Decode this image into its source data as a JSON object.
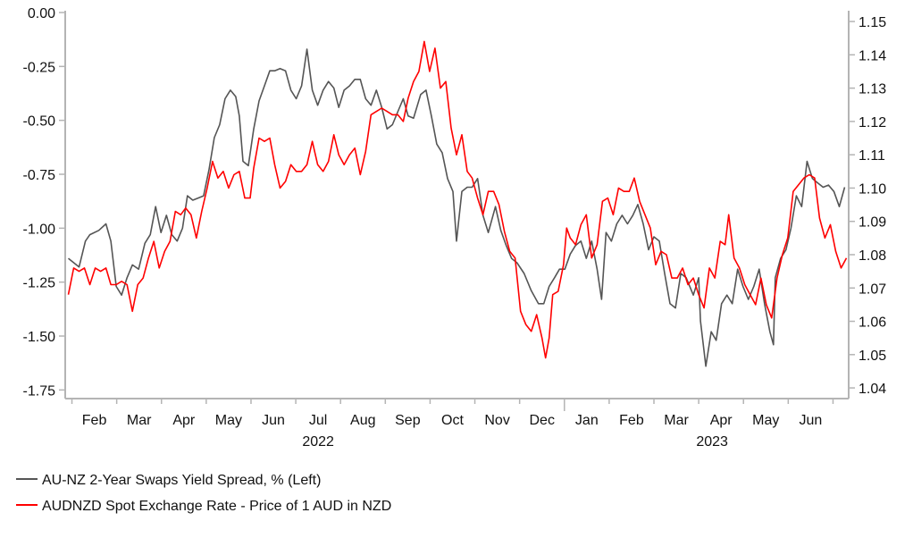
{
  "chart_data": {
    "type": "line",
    "title": "",
    "x_unit": "months since 2022-01-01",
    "xlim": [
      0.85,
      18.35
    ],
    "x_tick_labels": [
      "Feb",
      "Mar",
      "Apr",
      "May",
      "Jun",
      "Jul",
      "Aug",
      "Sep",
      "Oct",
      "Nov",
      "Dec",
      "Jan",
      "Feb",
      "Mar",
      "Apr",
      "May",
      "Jun"
    ],
    "year_labels": [
      {
        "label": "2022",
        "at": 6.5
      },
      {
        "label": "2023",
        "at": 15.3
      }
    ],
    "left_axis": {
      "ylim": [
        -1.79,
        0.0
      ],
      "ticks": [
        "0.00",
        "-0.25",
        "-0.50",
        "-0.75",
        "-1.00",
        "-1.25",
        "-1.50",
        "-1.75"
      ],
      "tick_values": [
        0,
        -0.25,
        -0.5,
        -0.75,
        -1,
        -1.25,
        -1.5,
        -1.75
      ]
    },
    "right_axis": {
      "ylim": [
        1.0368,
        1.1527
      ],
      "ticks": [
        "1.15",
        "1.14",
        "1.13",
        "1.12",
        "1.11",
        "1.10",
        "1.09",
        "1.08",
        "1.07",
        "1.06",
        "1.05",
        "1.04"
      ],
      "tick_values": [
        1.15,
        1.14,
        1.13,
        1.12,
        1.11,
        1.1,
        1.09,
        1.08,
        1.07,
        1.06,
        1.05,
        1.04
      ]
    },
    "grid": false,
    "legend_position": "bottom-left",
    "series": [
      {
        "name": "AU-NZ 2-Year Swaps Yield Spread, % (Left)",
        "axis": "left",
        "color": "#555555",
        "x": [
          0.92,
          1.16,
          1.3,
          1.4,
          1.6,
          1.76,
          1.87,
          1.99,
          2.11,
          2.23,
          2.35,
          2.49,
          2.63,
          2.75,
          2.87,
          2.99,
          3.11,
          3.23,
          3.35,
          3.47,
          3.58,
          3.7,
          3.82,
          3.94,
          4.06,
          4.18,
          4.3,
          4.42,
          4.54,
          4.66,
          4.74,
          4.82,
          4.94,
          5.06,
          5.18,
          5.3,
          5.42,
          5.53,
          5.65,
          5.77,
          5.89,
          6.01,
          6.13,
          6.25,
          6.37,
          6.49,
          6.61,
          6.73,
          6.85,
          6.96,
          7.08,
          7.2,
          7.32,
          7.44,
          7.56,
          7.68,
          7.8,
          7.92,
          8.04,
          8.16,
          8.28,
          8.4,
          8.51,
          8.63,
          8.79,
          8.91,
          9.03,
          9.15,
          9.27,
          9.39,
          9.51,
          9.59,
          9.71,
          9.83,
          9.94,
          10.06,
          10.18,
          10.3,
          10.46,
          10.58,
          10.7,
          10.82,
          10.94,
          11.1,
          11.26,
          11.42,
          11.54,
          11.66,
          11.78,
          11.89,
          12.01,
          12.13,
          12.25,
          12.37,
          12.49,
          12.61,
          12.73,
          12.83,
          12.93,
          13.05,
          13.17,
          13.29,
          13.41,
          13.53,
          13.64,
          13.76,
          13.88,
          14.0,
          14.12,
          14.24,
          14.36,
          14.48,
          14.6,
          14.72,
          14.88,
          15.0,
          15.04,
          15.16,
          15.28,
          15.39,
          15.51,
          15.63,
          15.75,
          15.87,
          15.99,
          16.11,
          16.23,
          16.35,
          16.47,
          16.59,
          16.67,
          16.71,
          16.83,
          16.95,
          17.06,
          17.18,
          17.3,
          17.42,
          17.54,
          17.66,
          17.78,
          17.9,
          18.02,
          18.14,
          18.26
        ],
        "y": [
          -1.14,
          -1.18,
          -1.06,
          -1.03,
          -1.01,
          -0.98,
          -1.06,
          -1.27,
          -1.31,
          -1.23,
          -1.17,
          -1.19,
          -1.07,
          -1.03,
          -0.9,
          -1.02,
          -0.94,
          -1.03,
          -1.06,
          -1.0,
          -0.85,
          -0.87,
          -0.86,
          -0.85,
          -0.73,
          -0.58,
          -0.52,
          -0.4,
          -0.36,
          -0.39,
          -0.48,
          -0.69,
          -0.71,
          -0.54,
          -0.41,
          -0.34,
          -0.27,
          -0.27,
          -0.26,
          -0.27,
          -0.36,
          -0.4,
          -0.34,
          -0.17,
          -0.36,
          -0.43,
          -0.36,
          -0.32,
          -0.35,
          -0.44,
          -0.36,
          -0.34,
          -0.31,
          -0.31,
          -0.4,
          -0.43,
          -0.36,
          -0.44,
          -0.54,
          -0.52,
          -0.46,
          -0.4,
          -0.48,
          -0.49,
          -0.38,
          -0.36,
          -0.48,
          -0.61,
          -0.65,
          -0.77,
          -0.83,
          -1.06,
          -0.83,
          -0.81,
          -0.81,
          -0.77,
          -0.94,
          -1.02,
          -0.9,
          -1.01,
          -1.08,
          -1.14,
          -1.16,
          -1.21,
          -1.29,
          -1.35,
          -1.35,
          -1.27,
          -1.23,
          -1.19,
          -1.19,
          -1.12,
          -1.08,
          -1.06,
          -1.14,
          -1.06,
          -1.19,
          -1.33,
          -1.02,
          -1.06,
          -0.98,
          -0.94,
          -0.98,
          -0.94,
          -0.89,
          -0.98,
          -1.1,
          -1.04,
          -1.06,
          -1.21,
          -1.35,
          -1.37,
          -1.21,
          -1.23,
          -1.31,
          -1.23,
          -1.43,
          -1.64,
          -1.48,
          -1.52,
          -1.35,
          -1.31,
          -1.35,
          -1.19,
          -1.27,
          -1.33,
          -1.27,
          -1.19,
          -1.35,
          -1.48,
          -1.54,
          -1.23,
          -1.14,
          -1.1,
          -1.0,
          -0.85,
          -0.9,
          -0.69,
          -0.77,
          -0.79,
          -0.81,
          -0.8,
          -0.83,
          -0.9,
          -0.81
        ]
      },
      {
        "name": "AUDNZD Spot Exchange Rate - Price of 1 AUD in NZD",
        "axis": "right",
        "color": "#ff0000",
        "x": [
          0.92,
          1.04,
          1.16,
          1.28,
          1.4,
          1.52,
          1.64,
          1.76,
          1.87,
          1.99,
          2.11,
          2.23,
          2.35,
          2.47,
          2.59,
          2.71,
          2.83,
          2.95,
          3.07,
          3.19,
          3.31,
          3.43,
          3.54,
          3.66,
          3.78,
          3.9,
          4.02,
          4.14,
          4.26,
          4.38,
          4.5,
          4.62,
          4.74,
          4.86,
          4.98,
          5.06,
          5.18,
          5.3,
          5.42,
          5.53,
          5.65,
          5.77,
          5.89,
          6.01,
          6.13,
          6.25,
          6.37,
          6.49,
          6.61,
          6.73,
          6.85,
          6.96,
          7.08,
          7.2,
          7.32,
          7.44,
          7.56,
          7.68,
          7.8,
          7.92,
          8.04,
          8.16,
          8.28,
          8.4,
          8.51,
          8.63,
          8.75,
          8.87,
          8.99,
          9.11,
          9.23,
          9.35,
          9.47,
          9.59,
          9.71,
          9.83,
          9.94,
          10.06,
          10.18,
          10.3,
          10.42,
          10.54,
          10.66,
          10.78,
          10.9,
          11.02,
          11.14,
          11.26,
          11.38,
          11.5,
          11.58,
          11.66,
          11.74,
          11.86,
          11.98,
          12.05,
          12.13,
          12.25,
          12.37,
          12.49,
          12.61,
          12.73,
          12.85,
          12.97,
          13.09,
          13.21,
          13.33,
          13.45,
          13.56,
          13.68,
          13.8,
          13.92,
          14.04,
          14.16,
          14.28,
          14.4,
          14.52,
          14.64,
          14.76,
          14.88,
          15.0,
          15.12,
          15.24,
          15.36,
          15.48,
          15.59,
          15.67,
          15.79,
          15.91,
          16.03,
          16.15,
          16.27,
          16.39,
          16.51,
          16.63,
          16.75,
          16.87,
          16.99,
          17.11,
          17.23,
          17.35,
          17.47,
          17.59,
          17.7,
          17.82,
          17.94,
          18.06,
          18.18,
          18.3
        ],
        "y": [
          1.068,
          1.076,
          1.075,
          1.076,
          1.071,
          1.076,
          1.075,
          1.076,
          1.071,
          1.071,
          1.072,
          1.071,
          1.063,
          1.071,
          1.073,
          1.079,
          1.084,
          1.076,
          1.081,
          1.084,
          1.093,
          1.092,
          1.094,
          1.092,
          1.085,
          1.093,
          1.1,
          1.108,
          1.103,
          1.105,
          1.1,
          1.104,
          1.105,
          1.097,
          1.097,
          1.106,
          1.115,
          1.114,
          1.115,
          1.107,
          1.1,
          1.102,
          1.107,
          1.105,
          1.105,
          1.107,
          1.114,
          1.107,
          1.105,
          1.108,
          1.116,
          1.11,
          1.107,
          1.11,
          1.112,
          1.104,
          1.111,
          1.122,
          1.123,
          1.124,
          1.123,
          1.122,
          1.122,
          1.12,
          1.127,
          1.132,
          1.135,
          1.144,
          1.135,
          1.142,
          1.13,
          1.132,
          1.118,
          1.11,
          1.116,
          1.105,
          1.103,
          1.097,
          1.092,
          1.099,
          1.099,
          1.095,
          1.087,
          1.081,
          1.079,
          1.063,
          1.059,
          1.057,
          1.062,
          1.055,
          1.049,
          1.055,
          1.068,
          1.069,
          1.077,
          1.088,
          1.085,
          1.083,
          1.089,
          1.092,
          1.079,
          1.083,
          1.096,
          1.097,
          1.092,
          1.1,
          1.099,
          1.099,
          1.103,
          1.096,
          1.092,
          1.088,
          1.077,
          1.081,
          1.08,
          1.073,
          1.073,
          1.076,
          1.071,
          1.073,
          1.068,
          1.064,
          1.076,
          1.073,
          1.084,
          1.083,
          1.092,
          1.079,
          1.076,
          1.071,
          1.068,
          1.065,
          1.073,
          1.065,
          1.061,
          1.073,
          1.08,
          1.085,
          1.099,
          1.101,
          1.103,
          1.104,
          1.103,
          1.091,
          1.085,
          1.089,
          1.081,
          1.076,
          1.079
        ]
      }
    ]
  }
}
